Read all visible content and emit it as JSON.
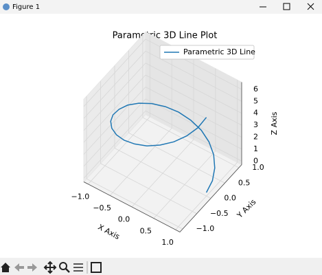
{
  "window": {
    "title": "Figure 1"
  },
  "chart_data": {
    "type": "line3d",
    "title": "Parametric 3D Line Plot",
    "xlabel": "X Axis",
    "ylabel": "Y Axis",
    "zlabel": "Z Axis",
    "xlim": [
      -1.1,
      1.1
    ],
    "ylim": [
      -1.1,
      1.1
    ],
    "zlim": [
      -0.3,
      6.6
    ],
    "xticks": [
      {
        "value": -1,
        "label": "−1.0"
      },
      {
        "value": -0.5,
        "label": "−0.5"
      },
      {
        "value": 0,
        "label": "0.0"
      },
      {
        "value": 0.5,
        "label": "0.5"
      },
      {
        "value": 1,
        "label": "1.0"
      }
    ],
    "yticks": [
      {
        "value": -1,
        "label": "−1.0"
      },
      {
        "value": -0.5,
        "label": "−0.5"
      },
      {
        "value": 0,
        "label": "0.0"
      },
      {
        "value": 0.5,
        "label": "0.5"
      },
      {
        "value": 1,
        "label": "1.0"
      }
    ],
    "zticks": [
      0,
      1,
      2,
      3,
      4,
      5,
      6
    ],
    "grid": true,
    "legend": "upper right",
    "series": [
      {
        "name": "Parametric 3D Line",
        "color": "#1f77b4",
        "x": [
          1,
          0.97,
          0.87,
          0.71,
          0.5,
          0.26,
          0,
          -0.26,
          -0.5,
          -0.71,
          -0.87,
          -0.97,
          -1,
          -0.97,
          -0.87,
          -0.71,
          -0.5,
          -0.26,
          0,
          0.26,
          0.5,
          0.71,
          0.87,
          0.97,
          1
        ],
        "y": [
          0,
          0.26,
          0.5,
          0.71,
          0.87,
          0.97,
          1,
          0.97,
          0.87,
          0.71,
          0.5,
          0.26,
          0,
          -0.26,
          -0.5,
          -0.71,
          -0.87,
          -0.97,
          -1,
          -0.97,
          -0.87,
          -0.71,
          -0.5,
          -0.26,
          0
        ],
        "z": [
          0,
          0.26,
          0.52,
          0.79,
          1.05,
          1.31,
          1.57,
          1.83,
          2.09,
          2.36,
          2.62,
          2.88,
          3.14,
          3.4,
          3.67,
          3.93,
          4.19,
          4.45,
          4.71,
          4.97,
          5.24,
          5.5,
          5.76,
          6.02,
          6.28
        ]
      }
    ]
  }
}
